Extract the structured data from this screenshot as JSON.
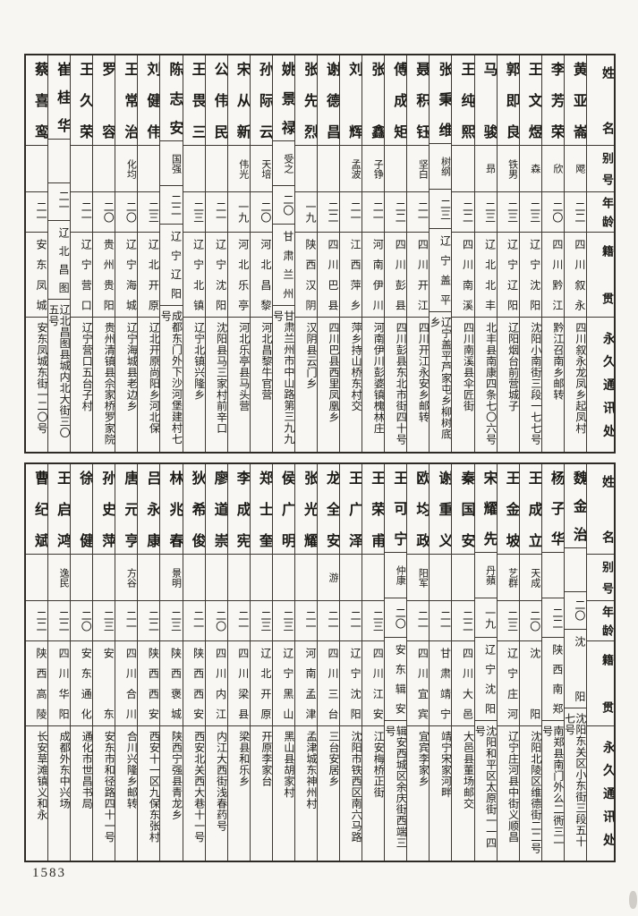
{
  "page": {
    "number": "1583"
  },
  "headers": {
    "name": "姓名",
    "alias": "别号",
    "age": "年龄",
    "origin": "籍贯",
    "address": "永久通讯处"
  },
  "tables": [
    {
      "section": "top",
      "people": [
        {
          "name": "黄亚崙",
          "alias": "飔",
          "age": "二二",
          "origin": "四川叙永",
          "address": "四川叙永龙凤乡起凤村"
        },
        {
          "name": "李芳荣",
          "alias": "欣",
          "age": "二〇",
          "origin": "四川黔江",
          "address": "黔江召南乡邮转"
        },
        {
          "name": "王文煜",
          "alias": "森",
          "age": "二三",
          "origin": "辽宁沈阳",
          "address": "沈阳小南街三段一七七号"
        },
        {
          "name": "郭即良",
          "alias": "铁男",
          "age": "二三",
          "origin": "辽宁辽阳",
          "address": "辽阳烟台前营城子"
        },
        {
          "name": "马骏",
          "alias": "昻",
          "age": "二三",
          "origin": "辽北北丰",
          "address": "北丰县南康四条七〇六号"
        },
        {
          "name": "王纯熙",
          "alias": "",
          "age": "二二",
          "origin": "四川南溪",
          "address": "四川南溪县伞匠街"
        },
        {
          "name": "张秉维",
          "alias": "树纲",
          "age": "二三",
          "origin": "辽宁盖平",
          "address": "辽宁盖平芦家屯乡柳树底乡"
        },
        {
          "name": "聂积钰",
          "alias": "坚白",
          "age": "二一",
          "origin": "四川开江",
          "address": "四川开江永安乡邮转"
        },
        {
          "name": "傅成矩",
          "alias": "",
          "age": "二二",
          "origin": "四川彭县",
          "address": "四川彭县东北市街四十号"
        },
        {
          "name": "张鑫",
          "alias": "子铮",
          "age": "二一",
          "origin": "河南伊川",
          "address": "河南伊川彭婆镇槐林庄"
        },
        {
          "name": "刘辉",
          "alias": "孟波",
          "age": "二一",
          "origin": "江西萍乡",
          "address": "萍乡持山桥东村交"
        },
        {
          "name": "谢德昌",
          "alias": "",
          "age": "二二",
          "origin": "四川巴县",
          "address": "四川巴县西里凤凰乡"
        },
        {
          "name": "张先烈",
          "alias": "",
          "age": "一九",
          "origin": "陕西汉阴",
          "address": "汉阴县云门乡"
        },
        {
          "name": "姚景禄",
          "alias": "受之",
          "age": "二〇",
          "origin": "甘肃兰州",
          "address": "甘肃兰州市中山路第三九九号"
        },
        {
          "name": "孙际云",
          "alias": "天培",
          "age": "二〇",
          "origin": "河北昌黎",
          "address": "河北昌黎牛官营"
        },
        {
          "name": "宋从新",
          "alias": "伟光",
          "age": "一九",
          "origin": "河北乐亭",
          "address": "河北乐亭县马头营"
        },
        {
          "name": "公伟民",
          "alias": "",
          "age": "二一",
          "origin": "辽宁沈阳",
          "address": "沈阳县马三家村前辛口"
        },
        {
          "name": "王畏三",
          "alias": "",
          "age": "二三",
          "origin": "辽宁北镇",
          "address": "辽宁北镇兴隆乡"
        },
        {
          "name": "陈志安",
          "alias": "国强",
          "age": "二二",
          "origin": "辽宁辽阳",
          "address": "成都东门外下沙河堡建村七号"
        },
        {
          "name": "刘健伟",
          "alias": "",
          "age": "二三",
          "origin": "辽北开原",
          "address": "辽北开原尚阳乡河北保"
        },
        {
          "name": "王常治",
          "alias": "化均",
          "age": "二〇",
          "origin": "辽宁海城",
          "address": "辽宁海城县老边乡"
        },
        {
          "name": "罗容",
          "alias": "",
          "age": "二〇",
          "origin": "贵州贵阳",
          "address": "贵州清镇县佘家桥罗家院"
        },
        {
          "name": "王久荣",
          "alias": "",
          "age": "二一",
          "origin": "辽宁营口",
          "address": "辽宁营口五台子村"
        },
        {
          "name": "崔桂华",
          "alias": "",
          "age": "二一",
          "origin": "辽北昌图",
          "address": "辽北昌图县城内北大街三〇五号"
        },
        {
          "name": "蔡喜鸾",
          "alias": "",
          "age": "二一",
          "origin": "安东凤城",
          "address": "安东凤城东街一二〇号"
        }
      ]
    },
    {
      "section": "bottom",
      "people": [
        {
          "name": "魏金治",
          "alias": "",
          "age": "二〇",
          "origin": "沈阳",
          "address": "沈阳东关区小东街三段五十七号"
        },
        {
          "name": "杨子华",
          "alias": "",
          "age": "二二",
          "origin": "陕西南郑",
          "address": "南郑县南门外么二衖三一号"
        },
        {
          "name": "王成立",
          "alias": "天成",
          "age": "二〇",
          "origin": "沈阳",
          "address": "沈阳北陵区维德街二二号"
        },
        {
          "name": "王金坡",
          "alias": "艺群",
          "age": "二三",
          "origin": "辽宁庄河",
          "address": "辽宁庄河县中街义顺昌"
        },
        {
          "name": "宋耀先",
          "alias": "丹蘋",
          "age": "一九",
          "origin": "辽宁沈阳",
          "address": "沈阳和平区太原街一一四号"
        },
        {
          "name": "秦国安",
          "alias": "",
          "age": "二二",
          "origin": "四川大邑",
          "address": "大邑县董场邮交"
        },
        {
          "name": "谢重义",
          "alias": "",
          "age": "二一",
          "origin": "甘肃靖宁",
          "address": "靖宁宋家河畔"
        },
        {
          "name": "欧均政",
          "alias": "阳军",
          "age": "二一",
          "origin": "四川宜宾",
          "address": "宜宾李家乡"
        },
        {
          "name": "王可宁",
          "alias": "仲康",
          "age": "二〇",
          "origin": "安东辑安",
          "address": "辑安西城区余庆街西端三号"
        },
        {
          "name": "王荣甫",
          "alias": "",
          "age": "二三",
          "origin": "四川江安",
          "address": "江安梅桥正街"
        },
        {
          "name": "王广泽",
          "alias": "",
          "age": "二一",
          "origin": "辽宁沈阳",
          "address": "沈阳市铁西区南六马路"
        },
        {
          "name": "龙全安",
          "alias": "游",
          "age": "二一",
          "origin": "四川三台",
          "address": "三台安居乡"
        },
        {
          "name": "张光耀",
          "alias": "",
          "age": "二一",
          "origin": "河南孟津",
          "address": "孟津城东神州村"
        },
        {
          "name": "侯广明",
          "alias": "",
          "age": "二三",
          "origin": "辽宁黑山",
          "address": "黑山县胡家村"
        },
        {
          "name": "郑士奎",
          "alias": "",
          "age": "二三",
          "origin": "辽北开原",
          "address": "开原李家台"
        },
        {
          "name": "李成宪",
          "alias": "",
          "age": "二一",
          "origin": "四川梁县",
          "address": "梁县和乐乡"
        },
        {
          "name": "廖道崇",
          "alias": "",
          "age": "二〇",
          "origin": "四川内江",
          "address": "内江大西街浅春药号"
        },
        {
          "name": "狄希俊",
          "alias": "",
          "age": "二一",
          "origin": "陕西西安",
          "address": "西安北关西大巷十一号"
        },
        {
          "name": "林兆春",
          "alias": "景明",
          "age": "二三",
          "origin": "陕西褒城",
          "address": "陕西宁强县青龙乡"
        },
        {
          "name": "吕永康",
          "alias": "",
          "age": "二二",
          "origin": "陕西西安",
          "address": "西安十一区九保东张村"
        },
        {
          "name": "唐元亨",
          "alias": "方谷",
          "age": "二一",
          "origin": "四川合川",
          "address": "合川兴隆乡邮转"
        },
        {
          "name": "孙史萍",
          "alias": "",
          "age": "二三",
          "origin": "安东",
          "address": "安东市和径路四十一号"
        },
        {
          "name": "徐健",
          "alias": "",
          "age": "二〇",
          "origin": "安东通化",
          "address": "通化市世昌书局"
        },
        {
          "name": "王启鸿",
          "alias": "逸民",
          "age": "二二",
          "origin": "四川华阳",
          "address": "成都外东中兴场"
        },
        {
          "name": "曹纪斌",
          "alias": "",
          "age": "二二",
          "origin": "陕西高陵",
          "address": "长安草滩镇义和永"
        }
      ]
    }
  ]
}
